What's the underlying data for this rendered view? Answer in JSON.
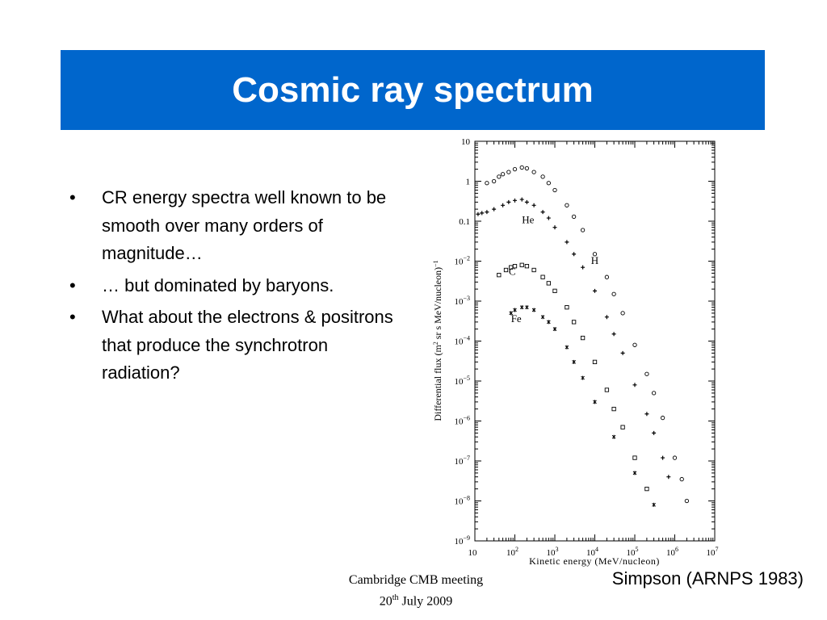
{
  "slide": {
    "title": "Cosmic ray spectrum",
    "bullets": [
      "CR energy spectra well known to be smooth over many orders of magnitude…",
      "… but dominated by baryons.",
      "What about the electrons & positrons that produce the synchrotron radiation?"
    ],
    "bullet_symbol": "•",
    "footer": {
      "line1": "Cambridge CMB meeting",
      "line2_prefix": "20",
      "line2_sup": "th",
      "line2_suffix": " July 2009"
    },
    "credit": "Simpson (ARNPS 1983)",
    "colors": {
      "title_bar": "#0066cc",
      "title_text": "#ffffff"
    }
  },
  "chart_data": {
    "type": "scatter",
    "xlabel": "Kinetic energy (MeV/nucleon)",
    "ylabel_parts": [
      "Differential flux (m",
      "2",
      " sr s MeV/nucleon)",
      "−1"
    ],
    "xscale": "log",
    "yscale": "log",
    "xlim": [
      10,
      10000000
    ],
    "ylim": [
      1e-09,
      10
    ],
    "x_ticks": [
      {
        "base": "10",
        "exp": ""
      },
      {
        "base": "10",
        "exp": "2"
      },
      {
        "base": "10",
        "exp": "3"
      },
      {
        "base": "10",
        "exp": "4"
      },
      {
        "base": "10",
        "exp": "5"
      },
      {
        "base": "10",
        "exp": "6"
      },
      {
        "base": "10",
        "exp": "7"
      }
    ],
    "x_tick_values": [
      10,
      100,
      1000,
      10000,
      100000,
      1000000,
      10000000
    ],
    "y_ticks": [
      {
        "base": "10",
        "exp": ""
      },
      {
        "base": "1",
        "exp": ""
      },
      {
        "base": "0.1",
        "exp": ""
      },
      {
        "base": "10",
        "exp": "−2"
      },
      {
        "base": "10",
        "exp": "−3"
      },
      {
        "base": "10",
        "exp": "−4"
      },
      {
        "base": "10",
        "exp": "−5"
      },
      {
        "base": "10",
        "exp": "−6"
      },
      {
        "base": "10",
        "exp": "−7"
      },
      {
        "base": "10",
        "exp": "−8"
      },
      {
        "base": "10",
        "exp": "−9"
      }
    ],
    "y_tick_values": [
      10,
      1,
      0.1,
      0.01,
      0.001,
      0.0001,
      1e-05,
      1e-06,
      1e-07,
      1e-08,
      1e-09
    ],
    "grid": false,
    "series": [
      {
        "name": "H",
        "marker": "circle",
        "points": [
          [
            20,
            0.9
          ],
          [
            30,
            1.0
          ],
          [
            40,
            1.3
          ],
          [
            50,
            1.5
          ],
          [
            70,
            1.7
          ],
          [
            100,
            2.0
          ],
          [
            150,
            2.2
          ],
          [
            200,
            2.1
          ],
          [
            300,
            1.7
          ],
          [
            500,
            1.3
          ],
          [
            700,
            0.9
          ],
          [
            1000,
            0.6
          ],
          [
            2000,
            0.25
          ],
          [
            3000,
            0.13
          ],
          [
            5000,
            0.06
          ],
          [
            10000,
            0.015
          ],
          [
            20000,
            0.004
          ],
          [
            30000,
            0.0015
          ],
          [
            50000,
            0.0005
          ],
          [
            100000,
            8e-05
          ],
          [
            200000,
            1.5e-05
          ],
          [
            300000,
            5e-06
          ],
          [
            500000,
            1.2e-06
          ],
          [
            1000000,
            1.2e-07
          ],
          [
            1500000,
            3.5e-08
          ],
          [
            2000000,
            1e-08
          ]
        ]
      },
      {
        "name": "He",
        "marker": "cross",
        "points": [
          [
            12,
            0.15
          ],
          [
            15,
            0.16
          ],
          [
            20,
            0.17
          ],
          [
            30,
            0.2
          ],
          [
            50,
            0.25
          ],
          [
            70,
            0.3
          ],
          [
            100,
            0.33
          ],
          [
            150,
            0.35
          ],
          [
            200,
            0.3
          ],
          [
            300,
            0.25
          ],
          [
            500,
            0.17
          ],
          [
            700,
            0.12
          ],
          [
            1000,
            0.07
          ],
          [
            2000,
            0.03
          ],
          [
            3000,
            0.015
          ],
          [
            5000,
            0.007
          ],
          [
            10000,
            0.0018
          ],
          [
            20000,
            0.0004
          ],
          [
            30000,
            0.00015
          ],
          [
            50000,
            5e-05
          ],
          [
            100000,
            8e-06
          ],
          [
            200000,
            1.5e-06
          ],
          [
            300000,
            5e-07
          ],
          [
            500000,
            1.2e-07
          ],
          [
            700000,
            4e-08
          ]
        ]
      },
      {
        "name": "C",
        "marker": "square",
        "points": [
          [
            40,
            0.0045
          ],
          [
            60,
            0.006
          ],
          [
            80,
            0.007
          ],
          [
            100,
            0.0075
          ],
          [
            150,
            0.008
          ],
          [
            200,
            0.0075
          ],
          [
            300,
            0.006
          ],
          [
            500,
            0.004
          ],
          [
            700,
            0.0028
          ],
          [
            1000,
            0.0018
          ],
          [
            2000,
            0.0007
          ],
          [
            3000,
            0.0003
          ],
          [
            5000,
            0.00012
          ],
          [
            10000,
            3e-05
          ],
          [
            20000,
            6e-06
          ],
          [
            30000,
            2e-06
          ],
          [
            50000,
            7e-07
          ],
          [
            100000,
            1.2e-07
          ],
          [
            200000,
            2e-08
          ]
        ]
      },
      {
        "name": "Fe",
        "marker": "star",
        "points": [
          [
            80,
            0.0005
          ],
          [
            100,
            0.0006
          ],
          [
            150,
            0.0007
          ],
          [
            200,
            0.0007
          ],
          [
            300,
            0.0006
          ],
          [
            500,
            0.0004
          ],
          [
            700,
            0.0003
          ],
          [
            1000,
            0.0002
          ],
          [
            2000,
            7e-05
          ],
          [
            3000,
            3e-05
          ],
          [
            5000,
            1.2e-05
          ],
          [
            10000,
            3e-06
          ],
          [
            30000,
            4e-07
          ],
          [
            100000,
            5e-08
          ],
          [
            300000,
            8e-09
          ]
        ]
      }
    ],
    "annotations": [
      {
        "text": "He",
        "x": 150,
        "y": 0.09
      },
      {
        "text": "H",
        "x": 8000,
        "y": 0.0085
      },
      {
        "text": "C",
        "x": 70,
        "y": 0.0045
      },
      {
        "text": "Fe",
        "x": 80,
        "y": 0.0003
      }
    ]
  }
}
